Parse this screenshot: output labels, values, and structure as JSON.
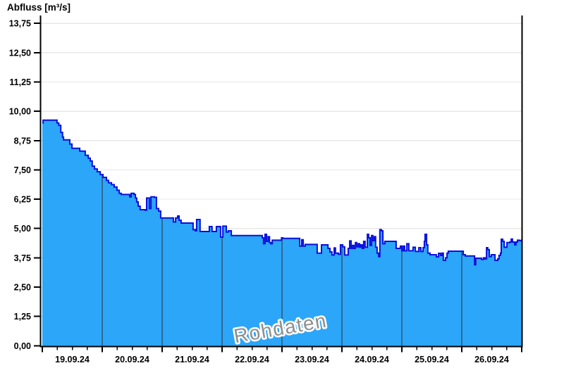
{
  "title": "Abfluss [m³/s]",
  "watermark": "Rohdaten",
  "colors": {
    "background": "#ffffff",
    "area_fill": "#2ca6f8",
    "area_line": "#0a10dc",
    "day_gridline": "#2d6996",
    "h_gridline": "#e8e8e8",
    "axis": "#000000",
    "tick_label": "#000000",
    "watermark_text": "#8f8f8f"
  },
  "y_axis": {
    "unit": "m³/s",
    "tick_values": [
      0,
      1.25,
      2.5,
      3.75,
      5,
      6.25,
      7.5,
      8.75,
      10,
      11.25,
      12.5,
      13.75
    ],
    "tick_labels": [
      "0,00",
      "1,25",
      "2,50",
      "3,75",
      "5,00",
      "6,25",
      "7,50",
      "8,75",
      "10,00",
      "11,25",
      "12,50",
      "13,75"
    ]
  },
  "x_axis": {
    "day_labels": [
      "19.09.24",
      "20.09.24",
      "21.09.24",
      "22.09.24",
      "23.09.24",
      "24.09.24",
      "25.09.24",
      "26.09.24"
    ],
    "minor_ticks_per_day": 4,
    "range_hours": [
      0,
      192
    ]
  },
  "chart_data": {
    "type": "area",
    "title": "Abfluss [m³/s]",
    "series_name": "Abfluss Rohdaten",
    "x_unit": "hours since 19.09.2024 00:00",
    "y_unit": "m³/s",
    "ylim": [
      0,
      14.1
    ],
    "xlim_labels": [
      "19.09.24",
      "26.09.24"
    ],
    "interpolation": "step-after",
    "grid": "horizontal-major + vertical-day-lines-inside-area",
    "legend": "none",
    "annotation": "Rohdaten",
    "points": [
      [
        0,
        9.5
      ],
      [
        0.3,
        9.62
      ],
      [
        5.4,
        9.62
      ],
      [
        5.9,
        9.5
      ],
      [
        6.6,
        9.4
      ],
      [
        7.4,
        9.1
      ],
      [
        8.1,
        8.9
      ],
      [
        8.5,
        8.78
      ],
      [
        10.4,
        8.78
      ],
      [
        11,
        8.6
      ],
      [
        11.9,
        8.42
      ],
      [
        14.1,
        8.42
      ],
      [
        15,
        8.3
      ],
      [
        16.4,
        8.3
      ],
      [
        17.2,
        8.12
      ],
      [
        18.4,
        8
      ],
      [
        19.2,
        7.88
      ],
      [
        20,
        7.66
      ],
      [
        20.9,
        7.54
      ],
      [
        22,
        7.42
      ],
      [
        23.2,
        7.3
      ],
      [
        24.3,
        7.18
      ],
      [
        25.1,
        7.18
      ],
      [
        25.7,
        7.05
      ],
      [
        26.5,
        6.95
      ],
      [
        27.7,
        6.87
      ],
      [
        28.8,
        6.77
      ],
      [
        29.9,
        6.63
      ],
      [
        30.8,
        6.5
      ],
      [
        31.6,
        6.45
      ],
      [
        34.4,
        6.45
      ],
      [
        35,
        6.35
      ],
      [
        35.6,
        6.5
      ],
      [
        36.7,
        6.45
      ],
      [
        37.3,
        6.3
      ],
      [
        37.8,
        6.13
      ],
      [
        38.4,
        5.95
      ],
      [
        39.2,
        5.8
      ],
      [
        41.2,
        5.78
      ],
      [
        41.8,
        6.3
      ],
      [
        42.9,
        5.85
      ],
      [
        43.5,
        6.35
      ],
      [
        44.9,
        6.33
      ],
      [
        45.7,
        5.85
      ],
      [
        46.6,
        5.74
      ],
      [
        47.4,
        5.45
      ],
      [
        50.8,
        5.45
      ],
      [
        52.5,
        5.28
      ],
      [
        53.4,
        5.45
      ],
      [
        54.2,
        5.53
      ],
      [
        54.8,
        5.35
      ],
      [
        55.6,
        5.23
      ],
      [
        59.6,
        5.23
      ],
      [
        60.4,
        4.95
      ],
      [
        61.3,
        4.9
      ],
      [
        61.8,
        5.38
      ],
      [
        62.4,
        5.38
      ],
      [
        63.2,
        4.87
      ],
      [
        66.4,
        4.87
      ],
      [
        66.9,
        5.08
      ],
      [
        67.5,
        5.08
      ],
      [
        68,
        4.87
      ],
      [
        69.2,
        4.87
      ],
      [
        69.7,
        5.08
      ],
      [
        70.9,
        5.08
      ],
      [
        71.4,
        4.63
      ],
      [
        72.3,
        5.1
      ],
      [
        73.1,
        5.1
      ],
      [
        73.7,
        4.85
      ],
      [
        74.5,
        4.9
      ],
      [
        75.7,
        4.7
      ],
      [
        87.5,
        4.7
      ],
      [
        88.1,
        4.6
      ],
      [
        88.6,
        4.35
      ],
      [
        89.2,
        4.75
      ],
      [
        89.8,
        4.45
      ],
      [
        90.4,
        4.65
      ],
      [
        91,
        4.4
      ],
      [
        91.5,
        4.35
      ],
      [
        92.1,
        4.5
      ],
      [
        95.2,
        4.5
      ],
      [
        95.8,
        4.6
      ],
      [
        96.3,
        4.58
      ],
      [
        102.2,
        4.58
      ],
      [
        103.1,
        4.25
      ],
      [
        103.9,
        4.52
      ],
      [
        104.5,
        4.25
      ],
      [
        105.3,
        4.32
      ],
      [
        109.6,
        4.32
      ],
      [
        110.1,
        3.95
      ],
      [
        111.3,
        3.95
      ],
      [
        111.8,
        4.3
      ],
      [
        113.5,
        4.3
      ],
      [
        114.4,
        4.15
      ],
      [
        115.2,
        4
      ],
      [
        116,
        3.87
      ],
      [
        116.9,
        4.17
      ],
      [
        117.4,
        3.95
      ],
      [
        118.6,
        3.9
      ],
      [
        119.4,
        4.3
      ],
      [
        120.3,
        4.22
      ],
      [
        121.1,
        3.87
      ],
      [
        122,
        3.87
      ],
      [
        122.5,
        4.15
      ],
      [
        123.1,
        4.47
      ],
      [
        123.7,
        4.15
      ],
      [
        124.2,
        4.28
      ],
      [
        124.8,
        4.15
      ],
      [
        125.4,
        4.4
      ],
      [
        125.9,
        4.22
      ],
      [
        126.5,
        4.35
      ],
      [
        127.1,
        4.2
      ],
      [
        127.6,
        4.3
      ],
      [
        128.2,
        4.15
      ],
      [
        128.7,
        4.45
      ],
      [
        129.3,
        4.2
      ],
      [
        130.2,
        4.75
      ],
      [
        130.7,
        4.6
      ],
      [
        131.3,
        4.28
      ],
      [
        131.9,
        4.7
      ],
      [
        132.4,
        4.48
      ],
      [
        133,
        4.65
      ],
      [
        133.5,
        4.2
      ],
      [
        134.1,
        3.95
      ],
      [
        134.7,
        3.8
      ],
      [
        135.2,
        4.95
      ],
      [
        135.8,
        4.9
      ],
      [
        136.4,
        4.35
      ],
      [
        137.2,
        4.45
      ],
      [
        140.9,
        4.45
      ],
      [
        141.7,
        4.15
      ],
      [
        142.9,
        4.15
      ],
      [
        143.4,
        4.25
      ],
      [
        144,
        4.05
      ],
      [
        144.6,
        4.25
      ],
      [
        145.1,
        4.05
      ],
      [
        146,
        4.35
      ],
      [
        146.8,
        4.05
      ],
      [
        147.9,
        4.05
      ],
      [
        148.5,
        4.2
      ],
      [
        149.4,
        4.02
      ],
      [
        150.2,
        4.02
      ],
      [
        150.8,
        4.18
      ],
      [
        151.6,
        4.02
      ],
      [
        152.5,
        4.18
      ],
      [
        153,
        4.45
      ],
      [
        153.3,
        4.75
      ],
      [
        153.9,
        4.3
      ],
      [
        154.4,
        3.95
      ],
      [
        155.3,
        3.88
      ],
      [
        157.3,
        3.88
      ],
      [
        157.8,
        3.79
      ],
      [
        158.7,
        3.94
      ],
      [
        159.5,
        3.85
      ],
      [
        160.1,
        3.95
      ],
      [
        160.6,
        3.64
      ],
      [
        161.5,
        3.75
      ],
      [
        162.1,
        3.95
      ],
      [
        162.6,
        4.03
      ],
      [
        168,
        4.03
      ],
      [
        168.6,
        3.88
      ],
      [
        169.4,
        3.83
      ],
      [
        172.5,
        3.83
      ],
      [
        173.1,
        3.45
      ],
      [
        173.6,
        3.73
      ],
      [
        175.3,
        3.73
      ],
      [
        175.9,
        3.68
      ],
      [
        176.7,
        3.75
      ],
      [
        177.3,
        3.7
      ],
      [
        177.9,
        4.18
      ],
      [
        178.4,
        4.1
      ],
      [
        179,
        3.8
      ],
      [
        179.8,
        3.88
      ],
      [
        180.7,
        3.88
      ],
      [
        181.3,
        3.64
      ],
      [
        182.4,
        3.7
      ],
      [
        182.9,
        3.85
      ],
      [
        183.5,
        3.95
      ],
      [
        183.8,
        4.54
      ],
      [
        184.4,
        4.45
      ],
      [
        185,
        4.2
      ],
      [
        185.5,
        4.2
      ],
      [
        186.1,
        4.4
      ],
      [
        187.2,
        4.42
      ],
      [
        187.8,
        4.55
      ],
      [
        188.3,
        4.42
      ],
      [
        189.2,
        4.3
      ],
      [
        189.7,
        4.42
      ],
      [
        190.3,
        4.5
      ],
      [
        191.1,
        4.48
      ],
      [
        192,
        4.55
      ]
    ]
  }
}
